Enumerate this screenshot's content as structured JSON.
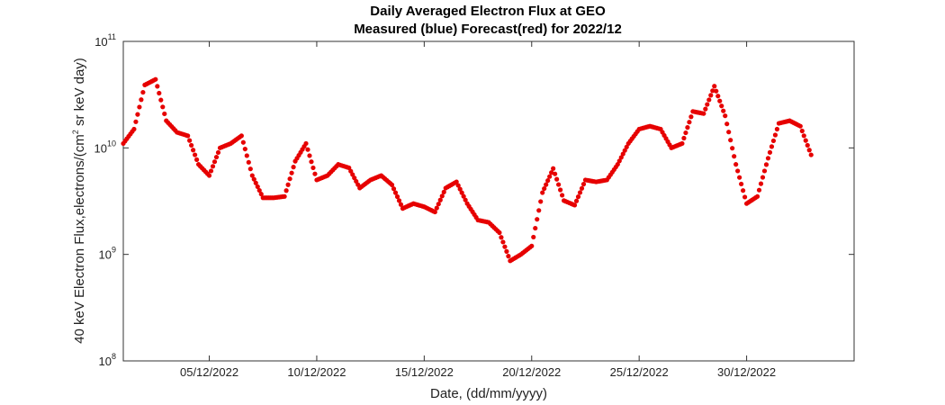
{
  "chart_data": {
    "type": "scatter",
    "title": "Daily Averaged Electron Flux at GEO",
    "subtitle": "Measured (blue) Forecast(red) for 2022/12",
    "xlabel": "Date, (dd/mm/yyyy)",
    "ylabel": "40 keV Electron Flux,electrons/(cm² sr keV day)",
    "ylabel_parts": {
      "before": "40 keV Electron Flux,electrons/(cm",
      "sup": "2",
      "after": " sr keV day)"
    },
    "y_scale": "log",
    "xlim": [
      "2022-12-01",
      "2023-01-04"
    ],
    "ylim": [
      100000000.0,
      100000000000.0
    ],
    "x_ticks": [
      "05/12/2022",
      "10/12/2022",
      "15/12/2022",
      "20/12/2022",
      "25/12/2022",
      "30/12/2022"
    ],
    "y_ticks": [
      {
        "base": "10",
        "exp": "8"
      },
      {
        "base": "10",
        "exp": "9"
      },
      {
        "base": "10",
        "exp": "10"
      },
      {
        "base": "10",
        "exp": "11"
      }
    ],
    "grid": false,
    "marker_color": "#e60000",
    "series": [
      {
        "x": [
          "2022-12-01T00:00",
          "2022-12-01T12:00",
          "2022-12-02T00:00",
          "2022-12-02T12:00",
          "2022-12-03T00:00",
          "2022-12-03T12:00",
          "2022-12-04T00:00",
          "2022-12-04T12:00",
          "2022-12-05T00:00",
          "2022-12-05T12:00",
          "2022-12-06T00:00",
          "2022-12-06T12:00",
          "2022-12-07T00:00",
          "2022-12-07T12:00",
          "2022-12-08T00:00",
          "2022-12-08T12:00",
          "2022-12-09T00:00",
          "2022-12-09T12:00",
          "2022-12-10T00:00",
          "2022-12-10T12:00",
          "2022-12-11T00:00",
          "2022-12-11T12:00",
          "2022-12-12T00:00",
          "2022-12-12T12:00",
          "2022-12-13T00:00",
          "2022-12-13T12:00",
          "2022-12-14T00:00",
          "2022-12-14T12:00",
          "2022-12-15T00:00",
          "2022-12-15T12:00",
          "2022-12-16T00:00",
          "2022-12-16T12:00",
          "2022-12-17T00:00",
          "2022-12-17T12:00",
          "2022-12-18T00:00",
          "2022-12-18T12:00",
          "2022-12-19T00:00",
          "2022-12-19T12:00",
          "2022-12-20T00:00",
          "2022-12-20T12:00",
          "2022-12-21T00:00",
          "2022-12-21T12:00",
          "2022-12-22T00:00",
          "2022-12-22T12:00",
          "2022-12-23T00:00",
          "2022-12-23T12:00",
          "2022-12-24T00:00",
          "2022-12-24T12:00",
          "2022-12-25T00:00",
          "2022-12-25T12:00",
          "2022-12-26T00:00",
          "2022-12-26T12:00",
          "2022-12-27T00:00",
          "2022-12-27T12:00",
          "2022-12-28T00:00",
          "2022-12-28T12:00",
          "2022-12-29T00:00",
          "2022-12-29T12:00",
          "2022-12-30T00:00",
          "2022-12-30T12:00",
          "2022-12-31T00:00",
          "2022-12-31T12:00",
          "2023-01-01T00:00",
          "2023-01-01T12:00",
          "2023-01-02T00:00"
        ],
        "y": [
          11000000000.0,
          15000000000.0,
          39000000000.0,
          44000000000.0,
          18000000000.0,
          14000000000.0,
          13000000000.0,
          7000000000.0,
          5500000000.0,
          10000000000.0,
          11000000000.0,
          13000000000.0,
          5500000000.0,
          3400000000.0,
          3400000000.0,
          3500000000.0,
          7500000000.0,
          11000000000.0,
          5000000000.0,
          5500000000.0,
          7000000000.0,
          6500000000.0,
          4200000000.0,
          5000000000.0,
          5500000000.0,
          4500000000.0,
          2700000000.0,
          3000000000.0,
          2800000000.0,
          2500000000.0,
          4200000000.0,
          4800000000.0,
          3000000000.0,
          2100000000.0,
          2000000000.0,
          1600000000.0,
          870000000.0,
          1000000000.0,
          1200000000.0,
          3800000000.0,
          6400000000.0,
          3200000000.0,
          2900000000.0,
          5000000000.0,
          4800000000.0,
          5000000000.0,
          7000000000.0,
          11000000000.0,
          15000000000.0,
          16000000000.0,
          15000000000.0,
          10000000000.0,
          11000000000.0,
          22000000000.0,
          21000000000.0,
          38000000000.0,
          20000000000.0,
          7000000000.0,
          3000000000.0,
          3500000000.0,
          8000000000.0,
          17000000000.0,
          18000000000.0,
          16000000000.0,
          8600000000.0
        ]
      }
    ]
  }
}
